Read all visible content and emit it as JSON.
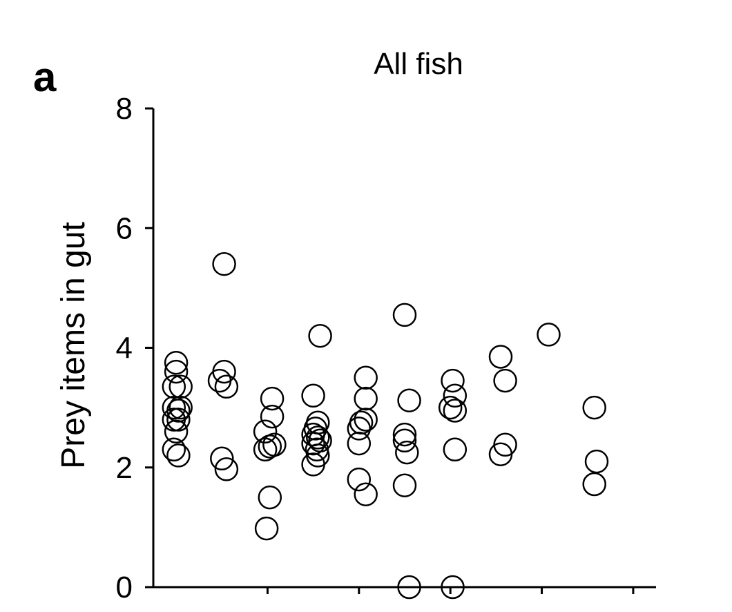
{
  "panel_label": "a",
  "chart_data": {
    "type": "scatter",
    "title": "All fish",
    "xlabel": "",
    "ylabel": "Prey items in gut",
    "ylim": [
      0,
      8
    ],
    "yticks": [
      0,
      2,
      4,
      6,
      8
    ],
    "xlim": [
      0.5,
      11.5
    ],
    "x_tick_positions": [
      3,
      5,
      7,
      9,
      11
    ],
    "grid": false,
    "points": [
      {
        "x": 1.0,
        "y": 3.75
      },
      {
        "x": 1.0,
        "y": 3.6
      },
      {
        "x": 0.95,
        "y": 3.35
      },
      {
        "x": 1.1,
        "y": 3.35
      },
      {
        "x": 0.95,
        "y": 3.0
      },
      {
        "x": 1.05,
        "y": 2.95
      },
      {
        "x": 1.1,
        "y": 3.0
      },
      {
        "x": 0.95,
        "y": 2.8
      },
      {
        "x": 1.05,
        "y": 2.8
      },
      {
        "x": 1.0,
        "y": 2.6
      },
      {
        "x": 0.95,
        "y": 2.3
      },
      {
        "x": 1.05,
        "y": 2.2
      },
      {
        "x": 2.05,
        "y": 5.4
      },
      {
        "x": 2.05,
        "y": 3.6
      },
      {
        "x": 1.95,
        "y": 3.45
      },
      {
        "x": 2.1,
        "y": 3.35
      },
      {
        "x": 2.0,
        "y": 2.15
      },
      {
        "x": 2.1,
        "y": 1.97
      },
      {
        "x": 3.1,
        "y": 3.15
      },
      {
        "x": 3.1,
        "y": 2.85
      },
      {
        "x": 2.95,
        "y": 2.6
      },
      {
        "x": 2.95,
        "y": 2.3
      },
      {
        "x": 3.05,
        "y": 2.35
      },
      {
        "x": 3.15,
        "y": 2.38
      },
      {
        "x": 3.05,
        "y": 1.5
      },
      {
        "x": 2.98,
        "y": 0.98
      },
      {
        "x": 4.15,
        "y": 4.2
      },
      {
        "x": 4.0,
        "y": 3.2
      },
      {
        "x": 4.1,
        "y": 2.75
      },
      {
        "x": 4.05,
        "y": 2.65
      },
      {
        "x": 4.0,
        "y": 2.55
      },
      {
        "x": 4.1,
        "y": 2.5
      },
      {
        "x": 4.15,
        "y": 2.45
      },
      {
        "x": 4.0,
        "y": 2.4
      },
      {
        "x": 4.08,
        "y": 2.3
      },
      {
        "x": 4.1,
        "y": 2.2
      },
      {
        "x": 4.0,
        "y": 2.05
      },
      {
        "x": 5.15,
        "y": 3.5
      },
      {
        "x": 5.15,
        "y": 3.15
      },
      {
        "x": 5.15,
        "y": 2.8
      },
      {
        "x": 5.05,
        "y": 2.75
      },
      {
        "x": 5.0,
        "y": 2.65
      },
      {
        "x": 5.0,
        "y": 2.4
      },
      {
        "x": 5.0,
        "y": 1.8
      },
      {
        "x": 5.15,
        "y": 1.55
      },
      {
        "x": 6.0,
        "y": 4.55
      },
      {
        "x": 6.1,
        "y": 3.12
      },
      {
        "x": 6.0,
        "y": 2.55
      },
      {
        "x": 6.0,
        "y": 2.45
      },
      {
        "x": 6.05,
        "y": 2.25
      },
      {
        "x": 6.0,
        "y": 1.7
      },
      {
        "x": 6.1,
        "y": 0.0
      },
      {
        "x": 7.05,
        "y": 3.45
      },
      {
        "x": 7.1,
        "y": 3.2
      },
      {
        "x": 7.0,
        "y": 3.0
      },
      {
        "x": 7.1,
        "y": 2.95
      },
      {
        "x": 7.1,
        "y": 2.3
      },
      {
        "x": 7.05,
        "y": 0.0
      },
      {
        "x": 8.1,
        "y": 3.85
      },
      {
        "x": 8.2,
        "y": 3.45
      },
      {
        "x": 8.2,
        "y": 2.38
      },
      {
        "x": 8.1,
        "y": 2.22
      },
      {
        "x": 9.15,
        "y": 4.22
      },
      {
        "x": 10.15,
        "y": 3.0
      },
      {
        "x": 10.2,
        "y": 2.1
      },
      {
        "x": 10.15,
        "y": 1.72
      }
    ]
  }
}
